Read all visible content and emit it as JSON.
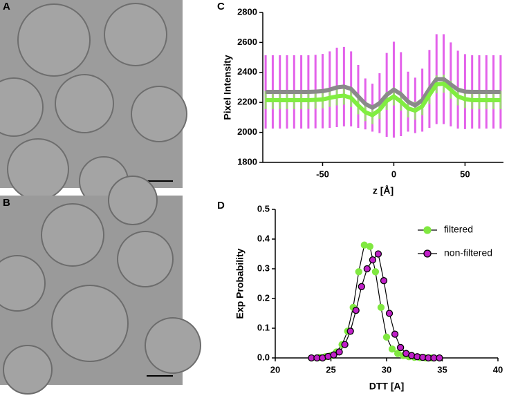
{
  "panel_labels": [
    "A",
    "B",
    "C",
    "D"
  ],
  "chart_data": [
    {
      "type": "line",
      "xlabel": "z [Å]",
      "ylabel": "Pixel Intensity",
      "x": [
        -90,
        -85,
        -80,
        -75,
        -70,
        -65,
        -60,
        -55,
        -50,
        -45,
        -40,
        -35,
        -30,
        -25,
        -20,
        -15,
        -10,
        -5,
        0,
        5,
        10,
        15,
        20,
        25,
        30,
        35,
        40,
        45,
        50,
        55,
        60,
        65,
        70,
        75
      ],
      "xlim": [
        -92,
        77
      ],
      "xticks": [
        -50,
        0,
        50
      ],
      "ylim": [
        1800,
        2800
      ],
      "yticks": [
        1800,
        2000,
        2200,
        2400,
        2600,
        2800
      ],
      "series": [
        {
          "color": "#8a8a8a",
          "band_color": "#e050e8",
          "values": [
            2270,
            2270,
            2270,
            2270,
            2270,
            2270,
            2270,
            2272,
            2275,
            2285,
            2300,
            2305,
            2290,
            2240,
            2190,
            2165,
            2195,
            2250,
            2285,
            2255,
            2205,
            2180,
            2215,
            2290,
            2355,
            2355,
            2320,
            2285,
            2272,
            2270,
            2270,
            2270,
            2270,
            2270
          ],
          "errors": [
            245,
            245,
            245,
            245,
            245,
            245,
            245,
            245,
            248,
            255,
            265,
            265,
            250,
            210,
            170,
            160,
            200,
            280,
            320,
            280,
            200,
            185,
            210,
            260,
            300,
            300,
            280,
            260,
            250,
            245,
            245,
            245,
            245,
            245
          ]
        },
        {
          "color": "#80ee40",
          "band_color": "#9ae070",
          "values": [
            2215,
            2215,
            2215,
            2215,
            2215,
            2215,
            2215,
            2217,
            2220,
            2230,
            2240,
            2245,
            2230,
            2180,
            2135,
            2115,
            2150,
            2210,
            2240,
            2205,
            2160,
            2145,
            2175,
            2250,
            2320,
            2325,
            2285,
            2240,
            2222,
            2215,
            2215,
            2215,
            2215,
            2215
          ],
          "errors": [
            60,
            60,
            60,
            60,
            60,
            60,
            60,
            60,
            60,
            60,
            60,
            60,
            60,
            60,
            60,
            60,
            60,
            60,
            60,
            60,
            60,
            60,
            60,
            60,
            60,
            60,
            60,
            60,
            60,
            60,
            60,
            60,
            60,
            60
          ]
        }
      ]
    },
    {
      "type": "scatter",
      "xlabel": "DTT [A]",
      "ylabel": "Exp Probability",
      "xlim": [
        20,
        40
      ],
      "xticks": [
        20,
        25,
        30,
        35,
        40
      ],
      "ylim": [
        0,
        0.5
      ],
      "yticks": [
        {
          "value": 0,
          "label": "0.0"
        },
        0.1,
        0.2,
        0.3,
        0.4,
        0.5
      ],
      "line_color": "#000000",
      "series": [
        {
          "name": "filtered",
          "color": "#80e840",
          "edgecolor": "#80e840",
          "x": [
            24,
            24.5,
            25,
            25.5,
            26,
            26.5,
            27,
            27.5,
            28,
            28.5,
            29,
            29.5,
            30,
            30.5,
            31,
            31.5,
            32,
            32.5,
            33,
            33.5,
            34
          ],
          "values": [
            0.002,
            0.004,
            0.008,
            0.02,
            0.045,
            0.09,
            0.17,
            0.29,
            0.38,
            0.375,
            0.29,
            0.17,
            0.07,
            0.03,
            0.015,
            0.008,
            0.004,
            0.002,
            0.001,
            0,
            0
          ]
        },
        {
          "name": "non-filtered",
          "color": "#c020c8",
          "edgecolor": "#000000",
          "x": [
            23.25,
            23.75,
            24.25,
            24.75,
            25.25,
            25.75,
            26.25,
            26.75,
            27.25,
            27.75,
            28.25,
            28.75,
            29.25,
            29.75,
            30.25,
            30.75,
            31.25,
            31.75,
            32.25,
            32.75,
            33.25,
            33.75,
            34.25,
            34.75
          ],
          "values": [
            0,
            0,
            0,
            0.005,
            0.01,
            0.02,
            0.045,
            0.09,
            0.16,
            0.24,
            0.3,
            0.33,
            0.35,
            0.26,
            0.15,
            0.08,
            0.035,
            0.015,
            0.008,
            0.004,
            0.002,
            0,
            0,
            0
          ]
        }
      ]
    }
  ]
}
